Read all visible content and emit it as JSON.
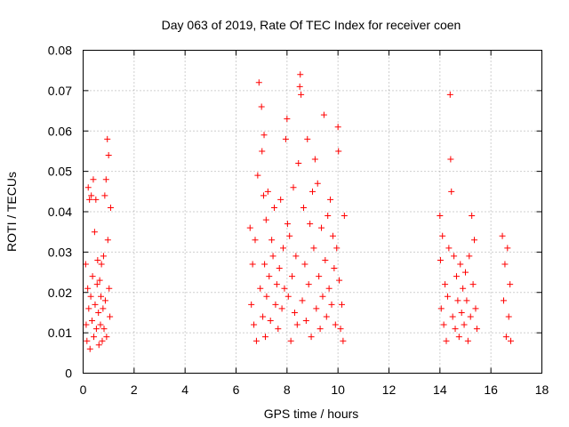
{
  "chart_data": {
    "type": "scatter",
    "title": "Day 063 of 2019, Rate Of TEC Index for receiver coen",
    "xlabel": "GPS time / hours",
    "ylabel": "ROTI / TECUs",
    "xlim": [
      0,
      18
    ],
    "ylim": [
      0,
      0.08
    ],
    "xticks": [
      0,
      2,
      4,
      6,
      8,
      10,
      12,
      14,
      16,
      18
    ],
    "xtick_labels": [
      "0",
      "2",
      "4",
      "6",
      "8",
      "10",
      "12",
      "14",
      "16",
      "18"
    ],
    "yticks": [
      0,
      0.01,
      0.02,
      0.03,
      0.04,
      0.05,
      0.06,
      0.07,
      0.08
    ],
    "ytick_labels": [
      "0",
      "0.01",
      "0.02",
      "0.03",
      "0.04",
      "0.05",
      "0.06",
      "0.07",
      "0.08"
    ],
    "grid": true,
    "marker": "+",
    "color": "#ff0000",
    "series": [
      {
        "name": "ROTI",
        "points": [
          [
            0.1,
            0.027
          ],
          [
            0.12,
            0.012
          ],
          [
            0.15,
            0.008
          ],
          [
            0.18,
            0.021
          ],
          [
            0.2,
            0.046
          ],
          [
            0.22,
            0.016
          ],
          [
            0.25,
            0.043
          ],
          [
            0.27,
            0.006
          ],
          [
            0.3,
            0.019
          ],
          [
            0.32,
            0.044
          ],
          [
            0.35,
            0.013
          ],
          [
            0.37,
            0.024
          ],
          [
            0.4,
            0.048
          ],
          [
            0.42,
            0.009
          ],
          [
            0.45,
            0.035
          ],
          [
            0.47,
            0.017
          ],
          [
            0.5,
            0.043
          ],
          [
            0.52,
            0.011
          ],
          [
            0.55,
            0.022
          ],
          [
            0.57,
            0.028
          ],
          [
            0.6,
            0.015
          ],
          [
            0.62,
            0.007
          ],
          [
            0.65,
            0.023
          ],
          [
            0.68,
            0.012
          ],
          [
            0.7,
            0.019
          ],
          [
            0.72,
            0.027
          ],
          [
            0.75,
            0.008
          ],
          [
            0.78,
            0.016
          ],
          [
            0.8,
            0.029
          ],
          [
            0.82,
            0.011
          ],
          [
            0.85,
            0.044
          ],
          [
            0.87,
            0.018
          ],
          [
            0.9,
            0.048
          ],
          [
            0.92,
            0.009
          ],
          [
            0.95,
            0.058
          ],
          [
            0.97,
            0.033
          ],
          [
            1.0,
            0.054
          ],
          [
            1.02,
            0.021
          ],
          [
            1.05,
            0.014
          ],
          [
            1.08,
            0.041
          ],
          [
            6.55,
            0.036
          ],
          [
            6.6,
            0.017
          ],
          [
            6.65,
            0.027
          ],
          [
            6.7,
            0.012
          ],
          [
            6.75,
            0.033
          ],
          [
            6.8,
            0.008
          ],
          [
            6.85,
            0.049
          ],
          [
            6.9,
            0.072
          ],
          [
            6.95,
            0.021
          ],
          [
            7.0,
            0.066
          ],
          [
            7.02,
            0.055
          ],
          [
            7.05,
            0.014
          ],
          [
            7.08,
            0.044
          ],
          [
            7.1,
            0.059
          ],
          [
            7.12,
            0.027
          ],
          [
            7.15,
            0.009
          ],
          [
            7.18,
            0.038
          ],
          [
            7.2,
            0.019
          ],
          [
            7.25,
            0.045
          ],
          [
            7.3,
            0.024
          ],
          [
            7.35,
            0.013
          ],
          [
            7.4,
            0.033
          ],
          [
            7.45,
            0.029
          ],
          [
            7.5,
            0.041
          ],
          [
            7.55,
            0.017
          ],
          [
            7.6,
            0.022
          ],
          [
            7.65,
            0.011
          ],
          [
            7.7,
            0.026
          ],
          [
            7.75,
            0.043
          ],
          [
            7.8,
            0.016
          ],
          [
            7.85,
            0.031
          ],
          [
            7.9,
            0.021
          ],
          [
            7.95,
            0.058
          ],
          [
            8.0,
            0.063
          ],
          [
            8.02,
            0.037
          ],
          [
            8.05,
            0.019
          ],
          [
            8.1,
            0.034
          ],
          [
            8.15,
            0.008
          ],
          [
            8.2,
            0.024
          ],
          [
            8.25,
            0.046
          ],
          [
            8.3,
            0.015
          ],
          [
            8.35,
            0.029
          ],
          [
            8.4,
            0.012
          ],
          [
            8.45,
            0.052
          ],
          [
            8.5,
            0.071
          ],
          [
            8.52,
            0.074
          ],
          [
            8.55,
            0.069
          ],
          [
            8.6,
            0.018
          ],
          [
            8.65,
            0.041
          ],
          [
            8.7,
            0.027
          ],
          [
            8.75,
            0.013
          ],
          [
            8.8,
            0.058
          ],
          [
            8.85,
            0.022
          ],
          [
            8.9,
            0.037
          ],
          [
            8.95,
            0.009
          ],
          [
            9.0,
            0.045
          ],
          [
            9.05,
            0.031
          ],
          [
            9.1,
            0.053
          ],
          [
            9.15,
            0.016
          ],
          [
            9.2,
            0.047
          ],
          [
            9.25,
            0.024
          ],
          [
            9.3,
            0.011
          ],
          [
            9.35,
            0.036
          ],
          [
            9.4,
            0.019
          ],
          [
            9.45,
            0.064
          ],
          [
            9.5,
            0.028
          ],
          [
            9.55,
            0.014
          ],
          [
            9.6,
            0.039
          ],
          [
            9.65,
            0.021
          ],
          [
            9.7,
            0.043
          ],
          [
            9.75,
            0.017
          ],
          [
            9.8,
            0.034
          ],
          [
            9.85,
            0.026
          ],
          [
            9.9,
            0.012
          ],
          [
            9.95,
            0.031
          ],
          [
            10.0,
            0.061
          ],
          [
            10.02,
            0.055
          ],
          [
            10.05,
            0.023
          ],
          [
            10.1,
            0.011
          ],
          [
            10.15,
            0.017
          ],
          [
            10.2,
            0.008
          ],
          [
            10.25,
            0.039
          ],
          [
            14.0,
            0.039
          ],
          [
            14.02,
            0.028
          ],
          [
            14.05,
            0.016
          ],
          [
            14.1,
            0.034
          ],
          [
            14.15,
            0.012
          ],
          [
            14.2,
            0.022
          ],
          [
            14.25,
            0.008
          ],
          [
            14.3,
            0.019
          ],
          [
            14.35,
            0.031
          ],
          [
            14.4,
            0.069
          ],
          [
            14.42,
            0.053
          ],
          [
            14.45,
            0.045
          ],
          [
            14.5,
            0.014
          ],
          [
            14.55,
            0.029
          ],
          [
            14.6,
            0.011
          ],
          [
            14.65,
            0.024
          ],
          [
            14.7,
            0.018
          ],
          [
            14.75,
            0.009
          ],
          [
            14.8,
            0.027
          ],
          [
            14.85,
            0.015
          ],
          [
            14.9,
            0.021
          ],
          [
            14.95,
            0.012
          ],
          [
            15.0,
            0.025
          ],
          [
            15.05,
            0.018
          ],
          [
            15.1,
            0.008
          ],
          [
            15.15,
            0.029
          ],
          [
            15.2,
            0.014
          ],
          [
            15.25,
            0.039
          ],
          [
            15.3,
            0.022
          ],
          [
            15.35,
            0.033
          ],
          [
            15.4,
            0.016
          ],
          [
            15.45,
            0.011
          ],
          [
            16.45,
            0.034
          ],
          [
            16.5,
            0.018
          ],
          [
            16.55,
            0.027
          ],
          [
            16.6,
            0.009
          ],
          [
            16.65,
            0.031
          ],
          [
            16.7,
            0.014
          ],
          [
            16.75,
            0.022
          ],
          [
            16.78,
            0.008
          ]
        ]
      }
    ]
  }
}
